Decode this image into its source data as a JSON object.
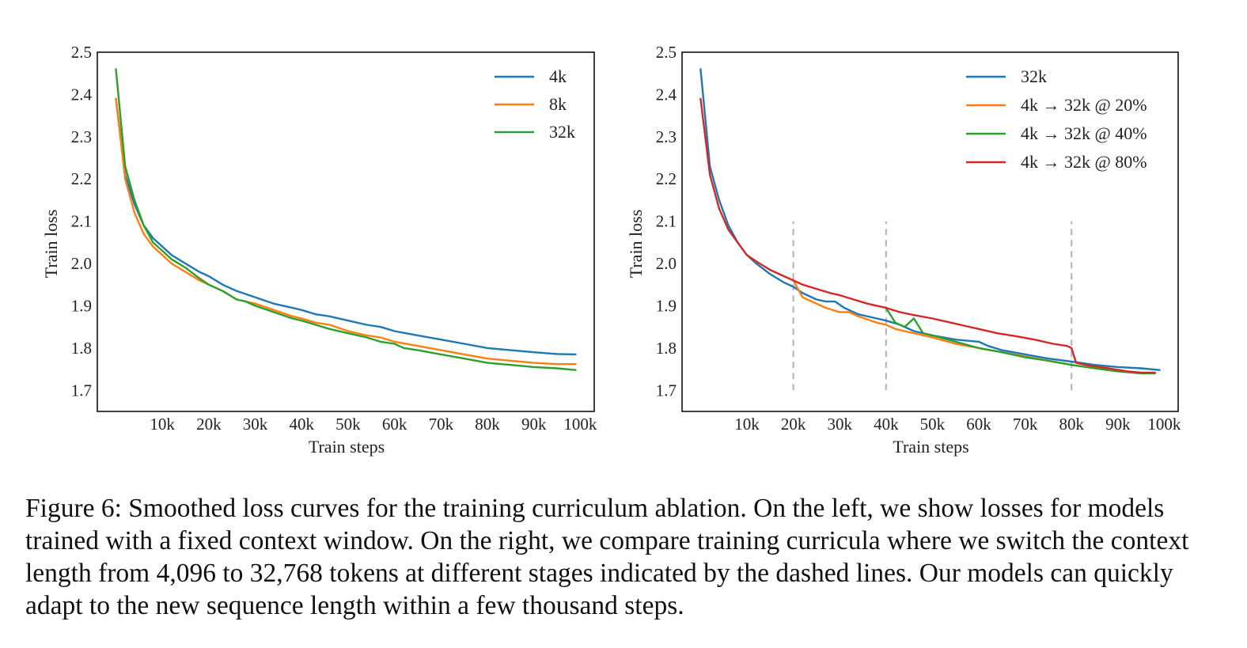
{
  "colors": {
    "blue": "#1f77b4",
    "orange": "#ff7f0e",
    "green": "#2ca02c",
    "red": "#d62728",
    "dashed": "#b8b8b8"
  },
  "chart_data": [
    {
      "type": "line",
      "title": "",
      "xlabel": "Train steps",
      "ylabel": "Train loss",
      "xlim": [
        -4000,
        103000
      ],
      "ylim": [
        1.65,
        2.5
      ],
      "xticks": [
        10000,
        20000,
        30000,
        40000,
        50000,
        60000,
        70000,
        80000,
        90000,
        100000
      ],
      "xtick_labels": [
        "10k",
        "20k",
        "30k",
        "40k",
        "50k",
        "60k",
        "70k",
        "80k",
        "90k",
        "100k"
      ],
      "yticks": [
        1.7,
        1.8,
        1.9,
        2.0,
        2.1,
        2.2,
        2.3,
        2.4,
        2.5
      ],
      "ytick_labels": [
        "1.7",
        "1.8",
        "1.9",
        "2.0",
        "2.1",
        "2.2",
        "2.3",
        "2.4",
        "2.5"
      ],
      "grid": false,
      "legend_position": "top-right",
      "series": [
        {
          "name": "4k",
          "color_key": "blue",
          "x": [
            0,
            2000,
            4000,
            6000,
            8000,
            10000,
            12000,
            15000,
            18000,
            20000,
            23000,
            26000,
            30000,
            34000,
            38000,
            40000,
            43000,
            46000,
            50000,
            54000,
            57000,
            60000,
            65000,
            70000,
            75000,
            80000,
            85000,
            90000,
            95000,
            99000
          ],
          "y": [
            2.39,
            2.21,
            2.14,
            2.09,
            2.06,
            2.04,
            2.02,
            2.0,
            1.98,
            1.97,
            1.95,
            1.935,
            1.92,
            1.905,
            1.895,
            1.89,
            1.88,
            1.875,
            1.865,
            1.855,
            1.85,
            1.84,
            1.83,
            1.82,
            1.81,
            1.8,
            1.795,
            1.79,
            1.786,
            1.785
          ]
        },
        {
          "name": "8k",
          "color_key": "orange",
          "x": [
            0,
            2000,
            4000,
            6000,
            8000,
            10000,
            12000,
            15000,
            18000,
            20000,
            23000,
            26000,
            30000,
            34000,
            38000,
            40000,
            43000,
            46000,
            50000,
            54000,
            57000,
            60000,
            65000,
            70000,
            75000,
            80000,
            85000,
            90000,
            95000,
            99000
          ],
          "y": [
            2.39,
            2.2,
            2.12,
            2.07,
            2.04,
            2.02,
            2.0,
            1.98,
            1.96,
            1.95,
            1.935,
            1.915,
            1.905,
            1.89,
            1.875,
            1.87,
            1.86,
            1.855,
            1.84,
            1.83,
            1.825,
            1.815,
            1.805,
            1.795,
            1.785,
            1.775,
            1.77,
            1.765,
            1.762,
            1.762
          ]
        },
        {
          "name": "32k",
          "color_key": "green",
          "x": [
            0,
            2000,
            4000,
            6000,
            8000,
            10000,
            12000,
            15000,
            18000,
            20000,
            23000,
            26000,
            28000,
            30000,
            34000,
            38000,
            40000,
            43000,
            46000,
            50000,
            54000,
            57000,
            60000,
            62000,
            65000,
            70000,
            75000,
            80000,
            85000,
            90000,
            95000,
            99000
          ],
          "y": [
            2.46,
            2.23,
            2.15,
            2.09,
            2.05,
            2.03,
            2.01,
            1.99,
            1.965,
            1.95,
            1.935,
            1.915,
            1.91,
            1.9,
            1.885,
            1.87,
            1.865,
            1.855,
            1.845,
            1.835,
            1.825,
            1.815,
            1.81,
            1.8,
            1.795,
            1.785,
            1.775,
            1.765,
            1.76,
            1.755,
            1.752,
            1.748
          ]
        }
      ]
    },
    {
      "type": "line",
      "title": "",
      "xlabel": "Train steps",
      "ylabel": "Train loss",
      "xlim": [
        -4000,
        103000
      ],
      "ylim": [
        1.65,
        2.5
      ],
      "xticks": [
        10000,
        20000,
        30000,
        40000,
        50000,
        60000,
        70000,
        80000,
        90000,
        100000
      ],
      "xtick_labels": [
        "10k",
        "20k",
        "30k",
        "40k",
        "50k",
        "60k",
        "70k",
        "80k",
        "90k",
        "100k"
      ],
      "yticks": [
        1.7,
        1.8,
        1.9,
        2.0,
        2.1,
        2.2,
        2.3,
        2.4,
        2.5
      ],
      "ytick_labels": [
        "1.7",
        "1.8",
        "1.9",
        "2.0",
        "2.1",
        "2.2",
        "2.3",
        "2.4",
        "2.5"
      ],
      "grid": false,
      "legend_position": "top-right",
      "vlines": [
        20000,
        40000,
        80000
      ],
      "vline_ymin": 1.7,
      "vline_ymax": 2.1,
      "series": [
        {
          "name": "32k",
          "color_key": "blue",
          "x": [
            0,
            2000,
            4000,
            6000,
            8000,
            10000,
            12000,
            15000,
            18000,
            20000,
            22000,
            25000,
            27000,
            29000,
            31000,
            34000,
            38000,
            40000,
            43000,
            46000,
            50000,
            55000,
            60000,
            62000,
            65000,
            70000,
            75000,
            80000,
            85000,
            90000,
            95000,
            99000
          ],
          "y": [
            2.46,
            2.23,
            2.15,
            2.09,
            2.05,
            2.02,
            2.0,
            1.975,
            1.955,
            1.945,
            1.93,
            1.915,
            1.91,
            1.91,
            1.895,
            1.88,
            1.87,
            1.865,
            1.855,
            1.84,
            1.83,
            1.82,
            1.815,
            1.805,
            1.795,
            1.785,
            1.775,
            1.768,
            1.76,
            1.755,
            1.752,
            1.748
          ]
        },
        {
          "name": "4k → 32k @ 20%",
          "color_key": "orange",
          "x": [
            20000,
            22000,
            24000,
            27000,
            30000,
            32000,
            34000,
            38000,
            40000,
            42000,
            44000,
            46000,
            50000,
            55000,
            60000,
            65000,
            70000,
            75000,
            80000,
            85000,
            90000,
            95000,
            98000
          ],
          "y": [
            1.96,
            1.92,
            1.91,
            1.895,
            1.885,
            1.885,
            1.875,
            1.86,
            1.855,
            1.845,
            1.84,
            1.835,
            1.825,
            1.81,
            1.8,
            1.79,
            1.78,
            1.77,
            1.76,
            1.752,
            1.745,
            1.74,
            1.74
          ]
        },
        {
          "name": "4k → 32k @ 40%",
          "color_key": "green",
          "x": [
            40000,
            42000,
            44000,
            46000,
            48000,
            50000,
            55000,
            60000,
            65000,
            70000,
            75000,
            80000,
            85000,
            90000,
            95000,
            98000
          ],
          "y": [
            1.895,
            1.86,
            1.85,
            1.87,
            1.835,
            1.83,
            1.815,
            1.8,
            1.79,
            1.778,
            1.77,
            1.76,
            1.752,
            1.745,
            1.74,
            1.74
          ]
        },
        {
          "name": "4k → 32k @ 80%",
          "color_key": "red",
          "x": [
            0,
            2000,
            4000,
            6000,
            8000,
            10000,
            12000,
            15000,
            18000,
            20000,
            22000,
            25000,
            28000,
            30000,
            33000,
            36000,
            40000,
            43000,
            46000,
            50000,
            54000,
            56000,
            60000,
            64000,
            68000,
            72000,
            76000,
            79000,
            80000,
            81000,
            84000,
            88000,
            92000,
            95000,
            98000
          ],
          "y": [
            2.39,
            2.21,
            2.13,
            2.08,
            2.05,
            2.02,
            2.005,
            1.985,
            1.97,
            1.96,
            1.95,
            1.94,
            1.93,
            1.925,
            1.915,
            1.905,
            1.895,
            1.885,
            1.878,
            1.87,
            1.86,
            1.855,
            1.845,
            1.835,
            1.828,
            1.82,
            1.81,
            1.805,
            1.8,
            1.765,
            1.758,
            1.752,
            1.745,
            1.742,
            1.742
          ]
        }
      ]
    }
  ],
  "caption": "Figure 6: Smoothed loss curves for the training curriculum ablation. On the left, we show losses for models trained with a fixed context window. On the right, we compare training curricula where we switch the context length from 4,096 to 32,768 tokens at different stages indicated by the dashed lines. Our models can quickly adapt to the new sequence length within a few thousand steps."
}
